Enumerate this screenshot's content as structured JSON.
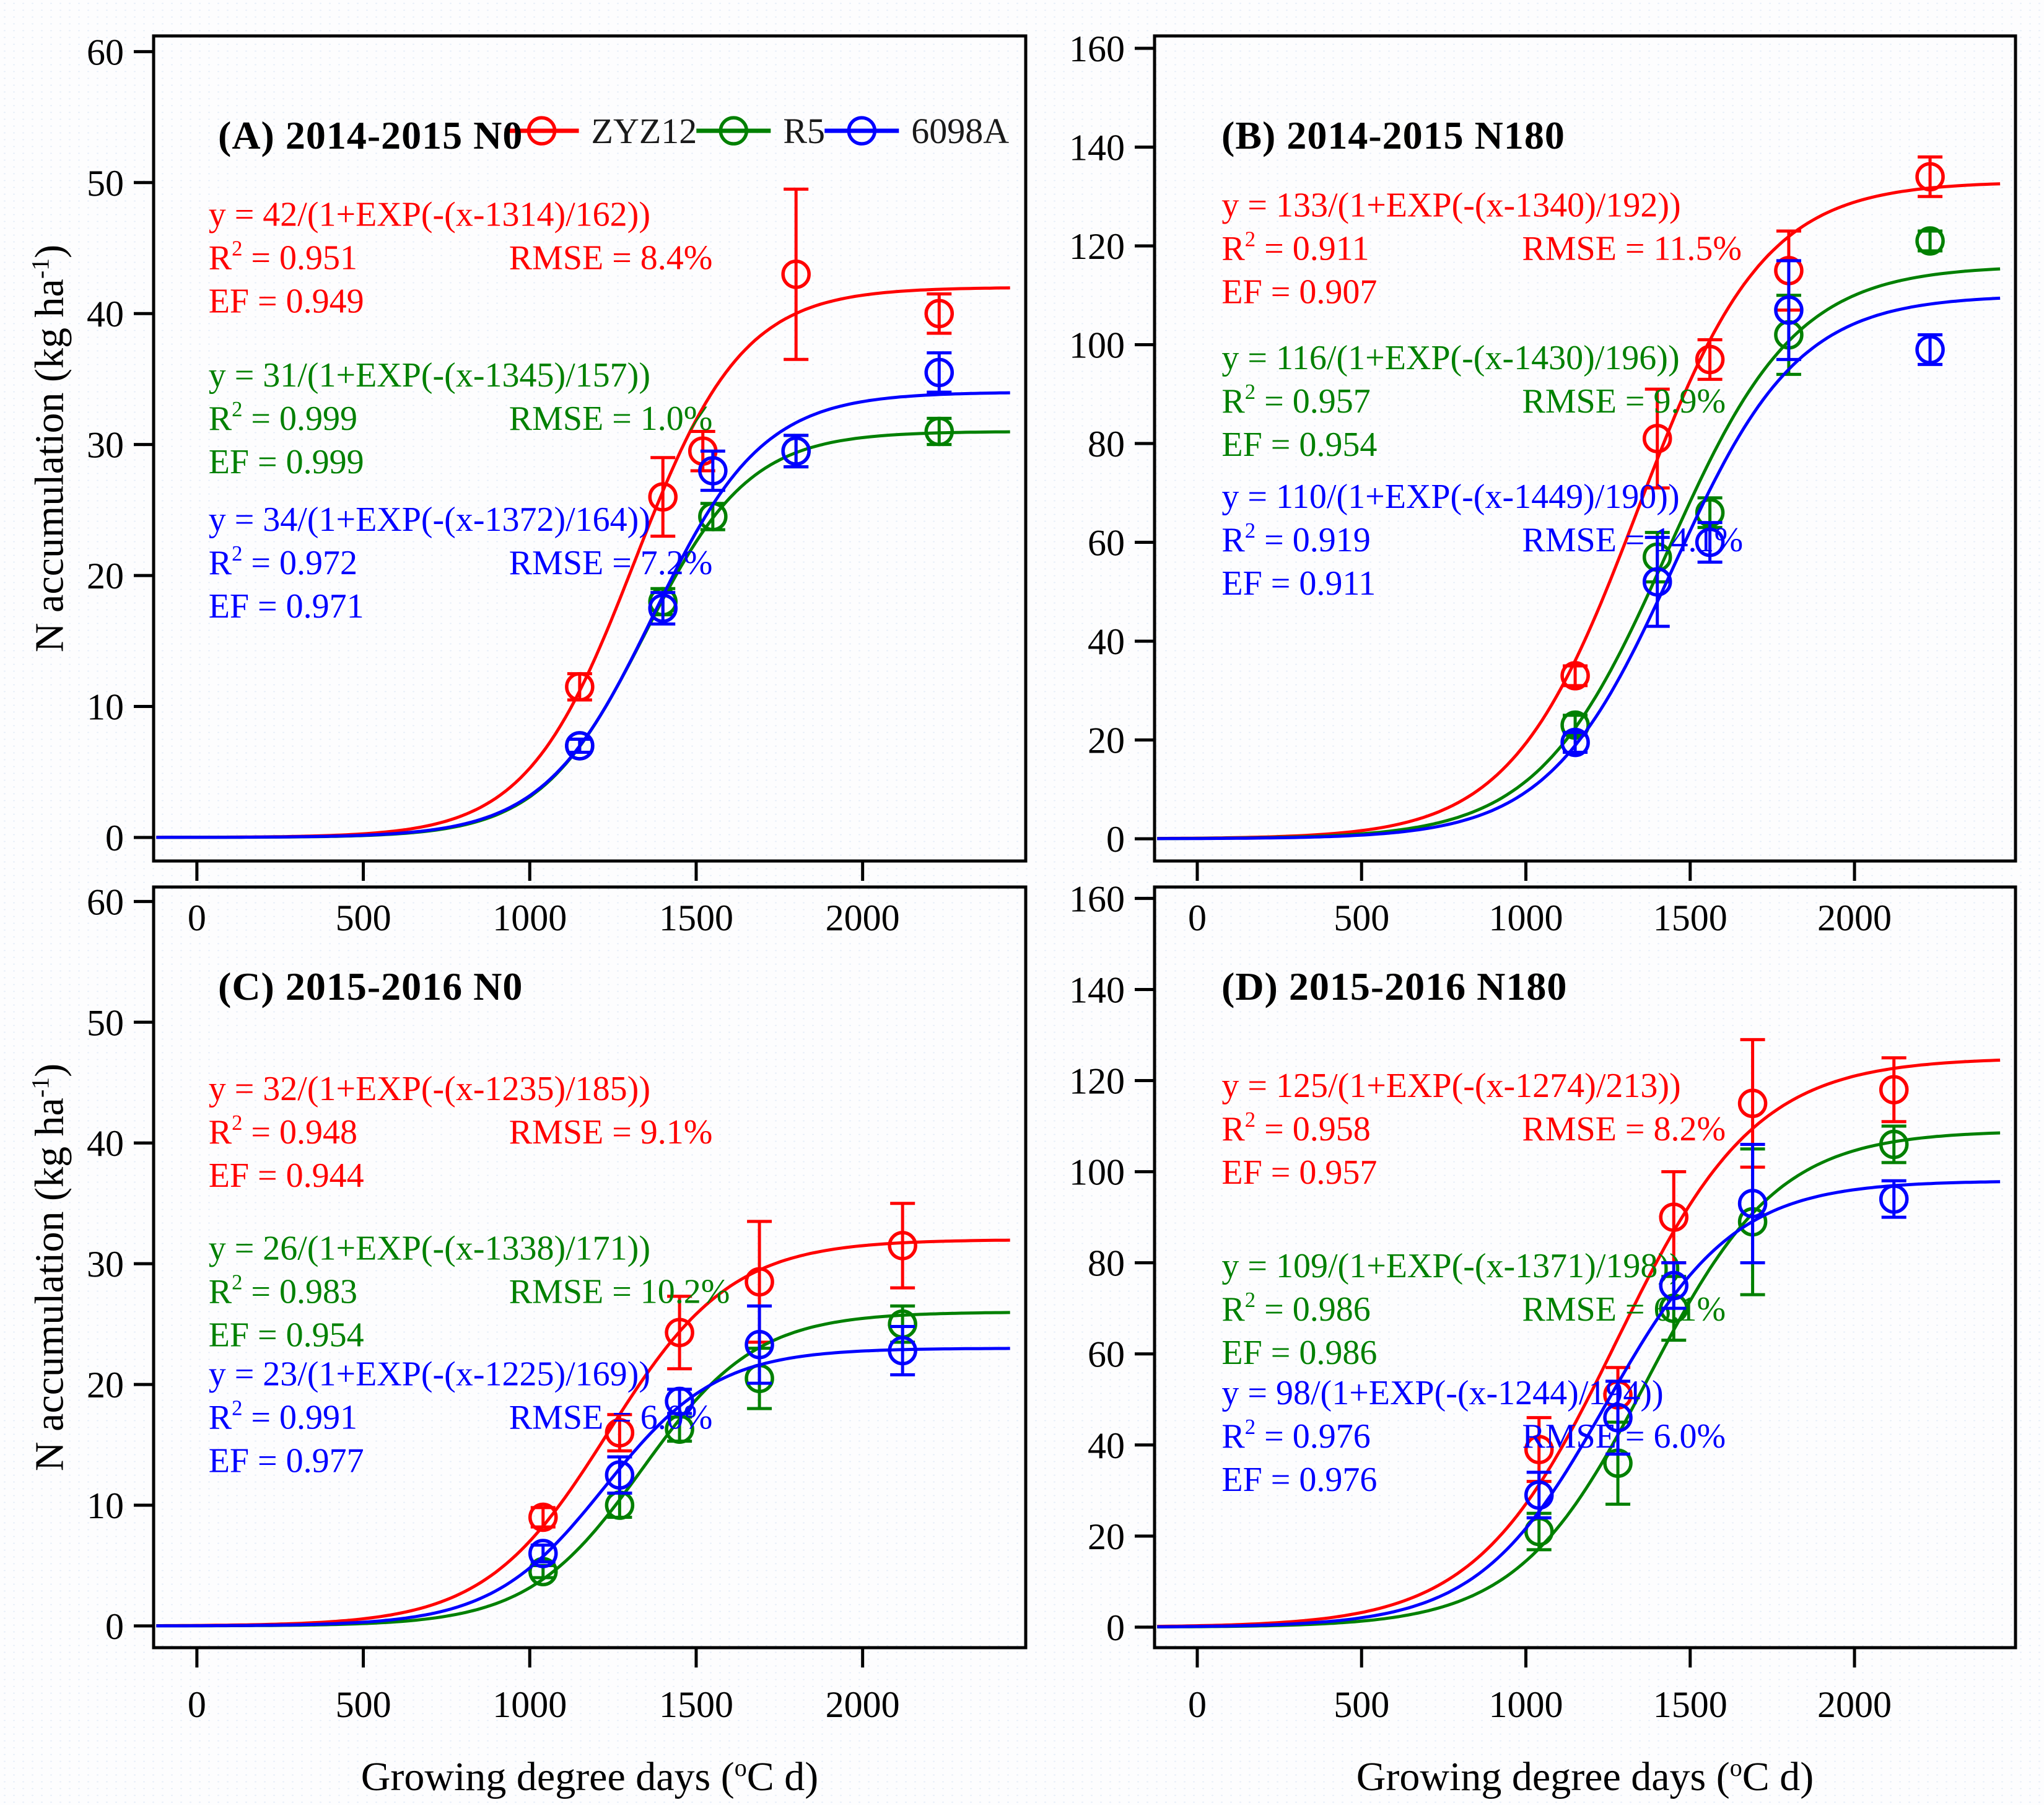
{
  "figure": {
    "y_axis_title_pre": "N accumulation (kg ha",
    "y_axis_title_sup": "-1",
    "y_axis_title_post": ")",
    "x_axis_title_pre": "Growing degree days (",
    "x_axis_title_sup": "o",
    "x_axis_title_post": "C d)",
    "axis_color": "#000000",
    "legend": {
      "items": [
        {
          "label": "ZYZ12",
          "color": "#ff0000"
        },
        {
          "label": "R5",
          "color": "#008000"
        },
        {
          "label": "6098A",
          "color": "#0000ff"
        }
      ]
    }
  },
  "chart_data": [
    {
      "id": "A",
      "type": "scatter",
      "title": "(A) 2014-2015 N0",
      "x_ticks": [
        0,
        500,
        1000,
        1500,
        2000
      ],
      "y_ticks": [
        0,
        10,
        20,
        30,
        40,
        50,
        60
      ],
      "xlim": [
        -130,
        2490
      ],
      "ylim": [
        -1.8,
        61.2
      ],
      "show_legend": true,
      "series": [
        {
          "name": "ZYZ12",
          "color": "#ff0000",
          "equation": "y = 42/(1+EXP(-(x-1314)/162))",
          "r2": "R^{2} = 0.951",
          "rmse": "RMSE = 8.4%",
          "ef": "EF = 0.949",
          "fit": {
            "a": 42,
            "xm": 1314,
            "b": 162
          },
          "x": [
            1150,
            1400,
            1520,
            1800,
            2230
          ],
          "y": [
            11.5,
            26,
            29.5,
            43,
            40
          ],
          "yerr": [
            1,
            3,
            1.5,
            6.5,
            1.5
          ]
        },
        {
          "name": "R5",
          "color": "#008000",
          "equation": "y = 31/(1+EXP(-(x-1345)/157))",
          "r2": "R^{2} = 0.999",
          "rmse": "RMSE = 1.0%",
          "ef": "EF = 0.999",
          "fit": {
            "a": 31,
            "xm": 1345,
            "b": 157
          },
          "x": [
            1150,
            1400,
            1550,
            1800,
            2230
          ],
          "y": [
            7,
            18,
            24.5,
            29.5,
            31
          ],
          "yerr": [
            0.5,
            1,
            1,
            1.2,
            1
          ]
        },
        {
          "name": "6098A",
          "color": "#0000ff",
          "equation": "y = 34/(1+EXP(-(x-1372)/164))",
          "r2": "R^{2} = 0.972",
          "rmse": "RMSE = 7.2%",
          "ef": "EF = 0.971",
          "fit": {
            "a": 34,
            "xm": 1372,
            "b": 164
          },
          "x": [
            1150,
            1400,
            1550,
            1800,
            2230
          ],
          "y": [
            7,
            17.5,
            28,
            29.5,
            35.5
          ],
          "yerr": [
            0.5,
            1.2,
            1.5,
            1.2,
            1.5
          ]
        }
      ]
    },
    {
      "id": "B",
      "type": "scatter",
      "title": "(B) 2014-2015 N180",
      "x_ticks": [
        0,
        500,
        1000,
        1500,
        2000
      ],
      "y_ticks": [
        0,
        20,
        40,
        60,
        80,
        100,
        120,
        140,
        160
      ],
      "xlim": [
        -130,
        2490
      ],
      "ylim": [
        -4.5,
        162.5
      ],
      "show_legend": false,
      "series": [
        {
          "name": "ZYZ12",
          "color": "#ff0000",
          "equation": "y = 133/(1+EXP(-(x-1340)/192))",
          "r2": "R^{2} = 0.911",
          "rmse": "RMSE = 11.5%",
          "ef": "EF = 0.907",
          "fit": {
            "a": 133,
            "xm": 1340,
            "b": 192
          },
          "x": [
            1150,
            1400,
            1560,
            1800,
            2230
          ],
          "y": [
            33,
            81,
            97,
            115,
            134
          ],
          "yerr": [
            2,
            10,
            4,
            8,
            4
          ]
        },
        {
          "name": "R5",
          "color": "#008000",
          "equation": "y = 116/(1+EXP(-(x-1430)/196))",
          "r2": "R^{2} = 0.957",
          "rmse": "RMSE = 9.9%",
          "ef": "EF = 0.954",
          "fit": {
            "a": 116,
            "xm": 1430,
            "b": 196
          },
          "x": [
            1150,
            1400,
            1560,
            1800,
            2230
          ],
          "y": [
            23,
            57,
            66,
            102,
            121
          ],
          "yerr": [
            2,
            5,
            3,
            8,
            2
          ]
        },
        {
          "name": "6098A",
          "color": "#0000ff",
          "equation": "y = 110/(1+EXP(-(x-1449)/190))",
          "r2": "R^{2} = 0.919",
          "rmse": "RMSE = 14.1%",
          "ef": "EF = 0.911",
          "fit": {
            "a": 110,
            "xm": 1449,
            "b": 190
          },
          "x": [
            1150,
            1400,
            1560,
            1800,
            2230
          ],
          "y": [
            19.5,
            52,
            60,
            107,
            99
          ],
          "yerr": [
            2,
            9,
            4,
            10,
            3
          ]
        }
      ]
    },
    {
      "id": "C",
      "type": "scatter",
      "title": "(C) 2015-2016 N0",
      "x_ticks": [
        0,
        500,
        1000,
        1500,
        2000
      ],
      "y_ticks": [
        0,
        10,
        20,
        30,
        40,
        50,
        60
      ],
      "xlim": [
        -130,
        2490
      ],
      "ylim": [
        -1.8,
        61.2
      ],
      "show_legend": false,
      "series": [
        {
          "name": "ZYZ12",
          "color": "#ff0000",
          "equation": "y = 32/(1+EXP(-(x-1235)/185))",
          "r2": "R^{2} = 0.948",
          "rmse": "RMSE = 9.1%",
          "ef": "EF = 0.944",
          "fit": {
            "a": 32,
            "xm": 1235,
            "b": 185
          },
          "x": [
            1040,
            1270,
            1450,
            1690,
            2120
          ],
          "y": [
            9,
            16,
            24.3,
            28.5,
            31.5
          ],
          "yerr": [
            0.8,
            1.5,
            3,
            5,
            3.5
          ]
        },
        {
          "name": "R5",
          "color": "#008000",
          "equation": "y = 26/(1+EXP(-(x-1338)/171))",
          "r2": "R^{2} = 0.983",
          "rmse": "RMSE = 10.2%",
          "ef": "EF = 0.954",
          "fit": {
            "a": 26,
            "xm": 1338,
            "b": 171
          },
          "x": [
            1040,
            1270,
            1450,
            1690,
            2120
          ],
          "y": [
            4.5,
            10,
            16.3,
            20.5,
            25
          ],
          "yerr": [
            0.5,
            1,
            1,
            2.5,
            1.5
          ]
        },
        {
          "name": "6098A",
          "color": "#0000ff",
          "equation": "y = 23/(1+EXP(-(x-1225)/169))",
          "r2": "R^{2} = 0.991",
          "rmse": "RMSE = 6.0%",
          "ef": "EF = 0.977",
          "fit": {
            "a": 23,
            "xm": 1225,
            "b": 169
          },
          "x": [
            1040,
            1270,
            1450,
            1690,
            2120
          ],
          "y": [
            6,
            12.5,
            18.6,
            23.3,
            22.8
          ],
          "yerr": [
            0.7,
            1.5,
            1,
            3.2,
            2
          ]
        }
      ]
    },
    {
      "id": "D",
      "type": "scatter",
      "title": "(D) 2015-2016 N180",
      "x_ticks": [
        0,
        500,
        1000,
        1500,
        2000
      ],
      "y_ticks": [
        0,
        20,
        40,
        60,
        80,
        100,
        120,
        140,
        160
      ],
      "xlim": [
        -130,
        2490
      ],
      "ylim": [
        -4.5,
        162.5
      ],
      "show_legend": false,
      "series": [
        {
          "name": "ZYZ12",
          "color": "#ff0000",
          "equation": "y = 125/(1+EXP(-(x-1274)/213))",
          "r2": "R^{2} = 0.958",
          "rmse": "RMSE = 8.2%",
          "ef": "EF = 0.957",
          "fit": {
            "a": 125,
            "xm": 1274,
            "b": 213
          },
          "x": [
            1040,
            1280,
            1450,
            1690,
            2120
          ],
          "y": [
            39,
            51,
            90,
            115,
            118
          ],
          "yerr": [
            7,
            6,
            10,
            14,
            7
          ]
        },
        {
          "name": "R5",
          "color": "#008000",
          "equation": "y = 109/(1+EXP(-(x-1371)/198))",
          "r2": "R^{2} = 0.986",
          "rmse": "RMSE = 6.1%",
          "ef": "EF = 0.986",
          "fit": {
            "a": 109,
            "xm": 1371,
            "b": 198
          },
          "x": [
            1040,
            1280,
            1450,
            1690,
            2120
          ],
          "y": [
            21,
            36,
            70,
            89,
            106
          ],
          "yerr": [
            4,
            9,
            7,
            16,
            4
          ]
        },
        {
          "name": "6098A",
          "color": "#0000ff",
          "equation": "y = 98/(1+EXP(-(x-1244)/194))",
          "r2": "R^{2} = 0.976",
          "rmse": "RMSE = 6.0%",
          "ef": "EF = 0.976",
          "fit": {
            "a": 98,
            "xm": 1244,
            "b": 194
          },
          "x": [
            1040,
            1280,
            1450,
            1690,
            2120
          ],
          "y": [
            29,
            46,
            75,
            93,
            94
          ],
          "yerr": [
            5,
            8,
            5,
            13,
            4
          ]
        }
      ]
    }
  ]
}
